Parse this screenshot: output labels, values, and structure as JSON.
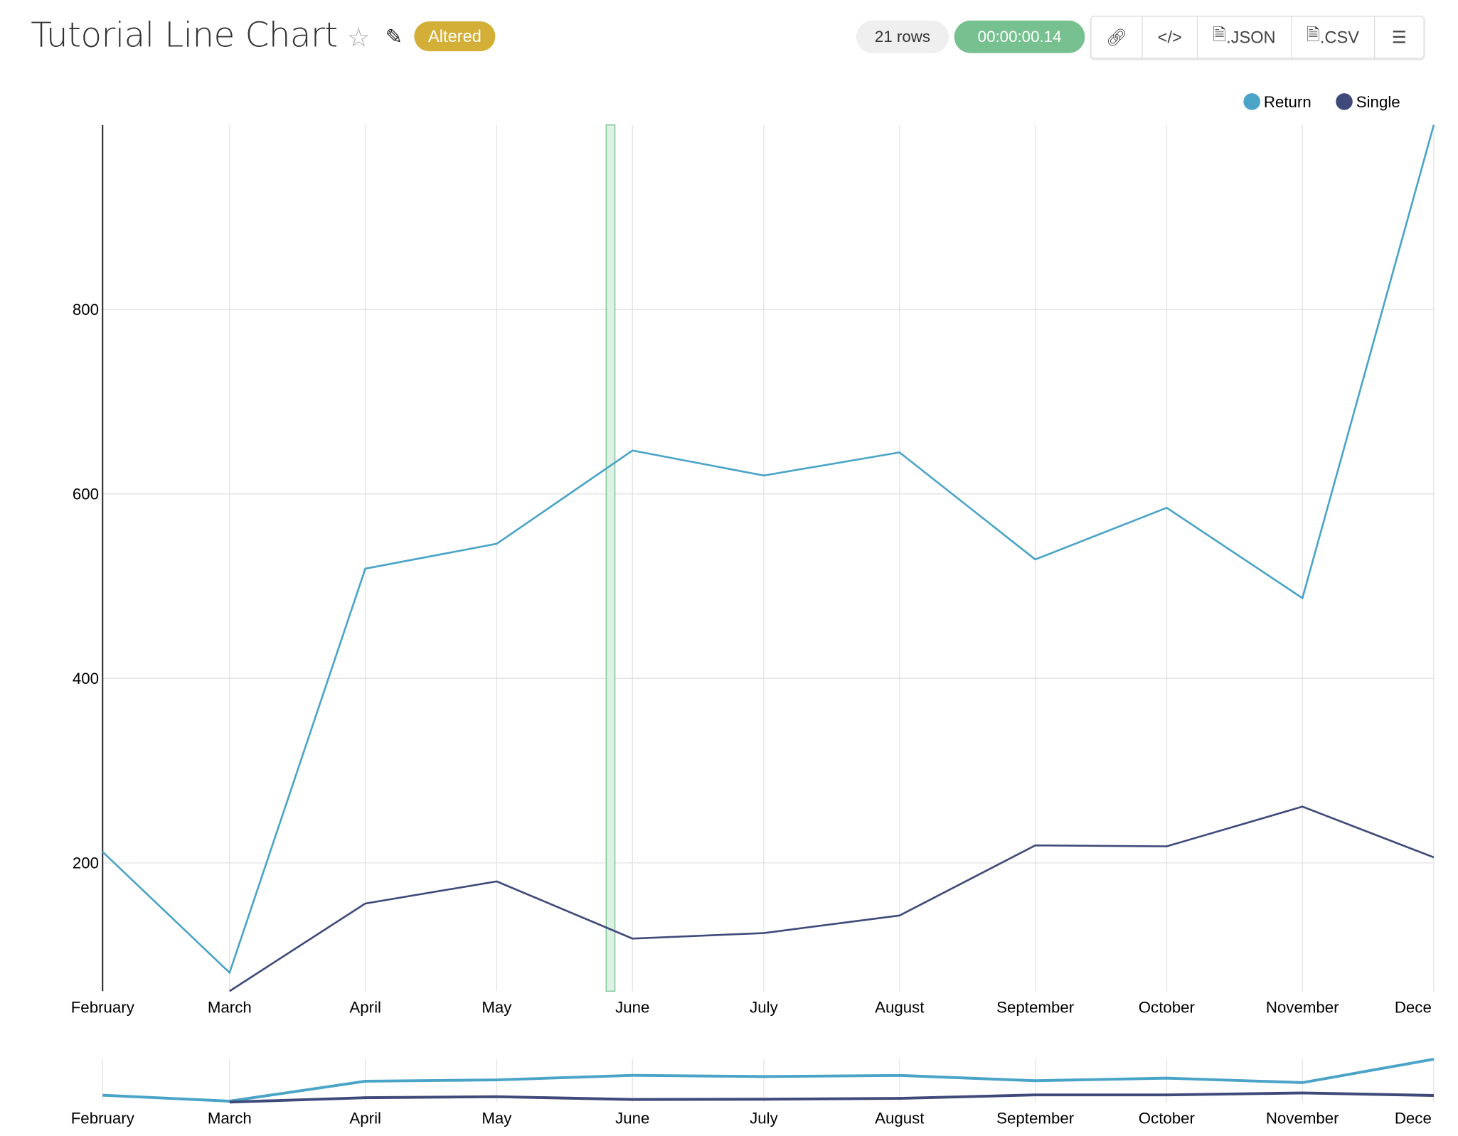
{
  "header": {
    "title": "Tutorial Line Chart",
    "status_badge": "Altered",
    "row_count": "21 rows",
    "query_time": "00:00:00.14",
    "buttons": [
      {
        "icon": "link-icon",
        "label": ""
      },
      {
        "icon": "code-icon",
        "label": ""
      },
      {
        "icon": "file-json-icon",
        "label": ".JSON"
      },
      {
        "icon": "file-csv-icon",
        "label": ".CSV"
      },
      {
        "icon": "menu-icon",
        "label": ""
      }
    ]
  },
  "chart_data": {
    "type": "line",
    "x_axis": "date",
    "x": [
      "February",
      "March",
      "April",
      "May",
      "June",
      "July",
      "August",
      "September",
      "October",
      "November",
      "Dece"
    ],
    "x_dates": [
      "2000-02-01",
      "2000-03-01",
      "2000-04-01",
      "2000-05-01",
      "2000-06-01",
      "2000-07-01",
      "2000-08-01",
      "2000-09-01",
      "2000-10-01",
      "2000-11-01",
      "2000-12-01"
    ],
    "yticks": [
      200,
      400,
      600,
      800
    ],
    "ylim": [
      61,
      1000
    ],
    "grid": true,
    "legend_position": "top-right",
    "series": [
      {
        "name": "Return",
        "color": "#4aa4c7",
        "values": [
          212,
          81,
          519,
          546,
          647,
          620,
          645,
          529,
          585,
          487,
          1000
        ]
      },
      {
        "name": "Single",
        "color": "#3f4a7a",
        "values": [
          null,
          61,
          156,
          180,
          118,
          124,
          143,
          219,
          218,
          261,
          206
        ]
      }
    ],
    "highlight_band": {
      "from": "2000-05-26",
      "to": "2000-05-28",
      "color": "#77c08f"
    },
    "overview": true
  }
}
